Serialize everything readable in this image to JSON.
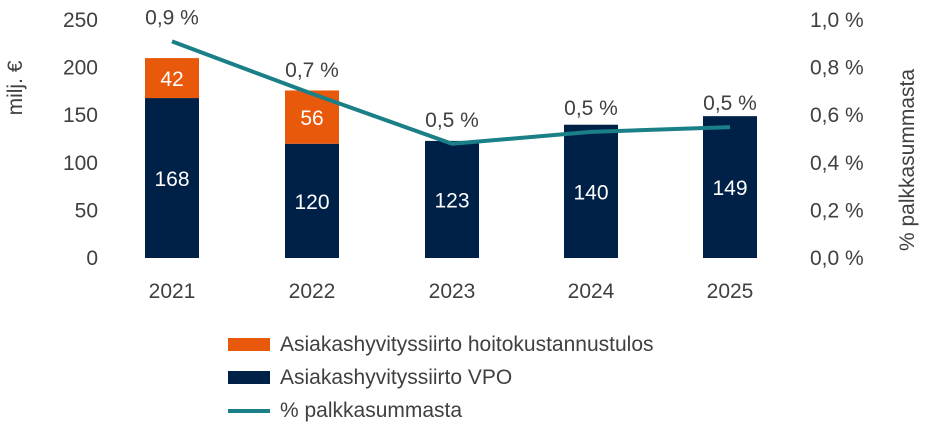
{
  "chart_data": {
    "type": "bar",
    "stacked": true,
    "categories": [
      "2021",
      "2022",
      "2023",
      "2024",
      "2025"
    ],
    "series": [
      {
        "name": "Asiakashyvityssiirto VPO",
        "type": "bar",
        "values": [
          168,
          120,
          123,
          140,
          149
        ],
        "color": "#002147",
        "axis": "left"
      },
      {
        "name": "Asiakashyvityssiirto hoitokustannustulos",
        "type": "bar",
        "values": [
          42,
          56,
          null,
          null,
          null
        ],
        "color": "#E8590C",
        "axis": "left"
      },
      {
        "name": "% palkkasummasta",
        "type": "line",
        "values": [
          0.9,
          0.7,
          0.5,
          0.5,
          0.5
        ],
        "plotted_values": [
          0.91,
          0.69,
          0.48,
          0.53,
          0.55
        ],
        "color": "#1A7F86",
        "axis": "right",
        "labels": [
          "0,9 %",
          "0,7 %",
          "0,5 %",
          "0,5 %",
          "0,5 %"
        ]
      }
    ],
    "y_left": {
      "label": "milj. €",
      "ylim": [
        0,
        250
      ],
      "ticks": [
        "0",
        "50",
        "100",
        "150",
        "200",
        "250"
      ]
    },
    "y_right": {
      "label": "% palkkasummasta",
      "ylim": [
        0.0,
        1.0
      ],
      "ticks": [
        "0,0 %",
        "0,2 %",
        "0,4 %",
        "0,6 %",
        "0,8 %",
        "1,0 %"
      ]
    },
    "grid": false,
    "legend_position": "bottom"
  },
  "legend": {
    "items": [
      {
        "label": "Asiakashyvityssiirto hoitokustannustulos",
        "color": "#E8590C",
        "kind": "box"
      },
      {
        "label": "Asiakashyvityssiirto VPO",
        "color": "#002147",
        "kind": "box"
      },
      {
        "label": "% palkkasummasta",
        "color": "#1A7F86",
        "kind": "line"
      }
    ]
  }
}
